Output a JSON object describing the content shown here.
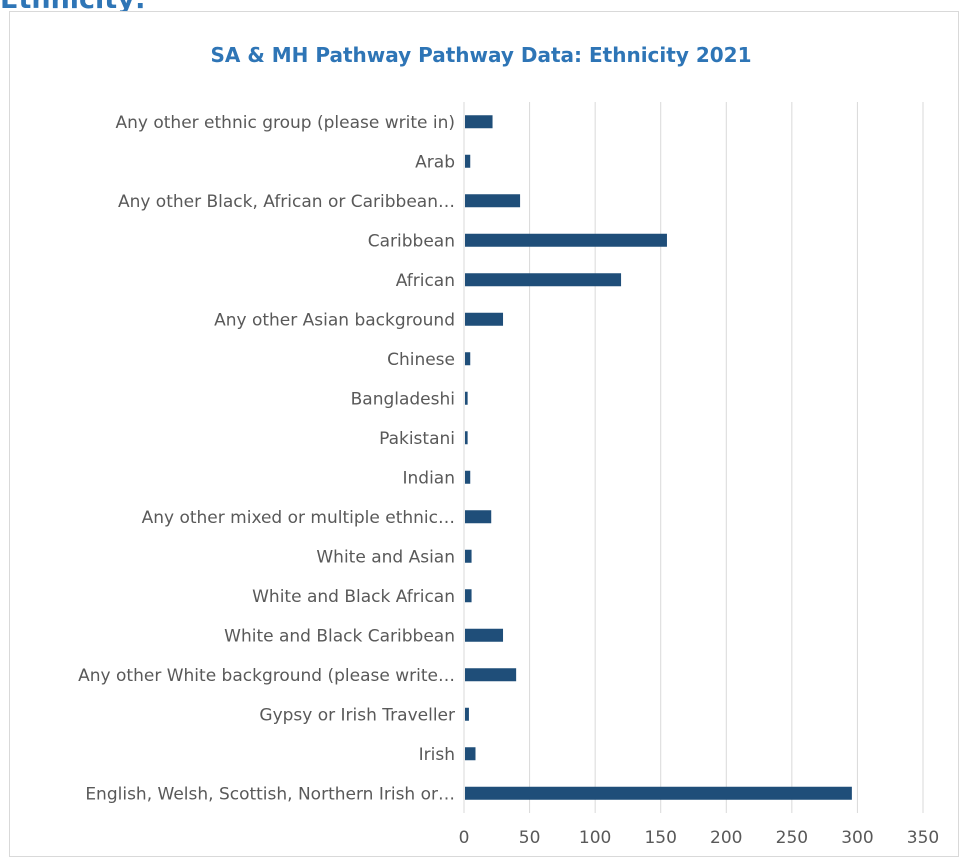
{
  "heading": "Ethnicity:",
  "colors": {
    "heading": "#2e75b6",
    "title": "#2e75b6",
    "bar": "#1f4e79",
    "text": "#595959",
    "grid": "#d9d9d9",
    "frame": "#d9d9d9"
  },
  "chart_data": {
    "type": "bar",
    "orientation": "horizontal",
    "title": "SA & MH Pathway Pathway Data: Ethnicity 2021",
    "xlabel": "",
    "ylabel": "",
    "xlim": [
      0,
      350
    ],
    "x_ticks": [
      "0",
      "50",
      "100",
      "150",
      "200",
      "250",
      "300",
      "350"
    ],
    "grid": true,
    "legend": "none",
    "categories": [
      "Any other ethnic group (please write in)",
      "Arab",
      "Any other Black, African or Caribbean…",
      "Caribbean",
      "African",
      "Any other Asian background",
      "Chinese",
      "Bangladeshi",
      "Pakistani",
      "Indian",
      "Any other mixed or multiple ethnic…",
      "White and Asian",
      "White and Black African",
      "White and Black Caribbean",
      "Any other White background (please write…",
      "Gypsy or Irish Traveller",
      "Irish",
      "English, Welsh, Scottish, Northern Irish or…"
    ],
    "values": [
      21,
      4,
      42,
      154,
      119,
      29,
      4,
      2,
      2,
      4,
      20,
      5,
      5,
      29,
      39,
      3,
      8,
      295
    ]
  }
}
